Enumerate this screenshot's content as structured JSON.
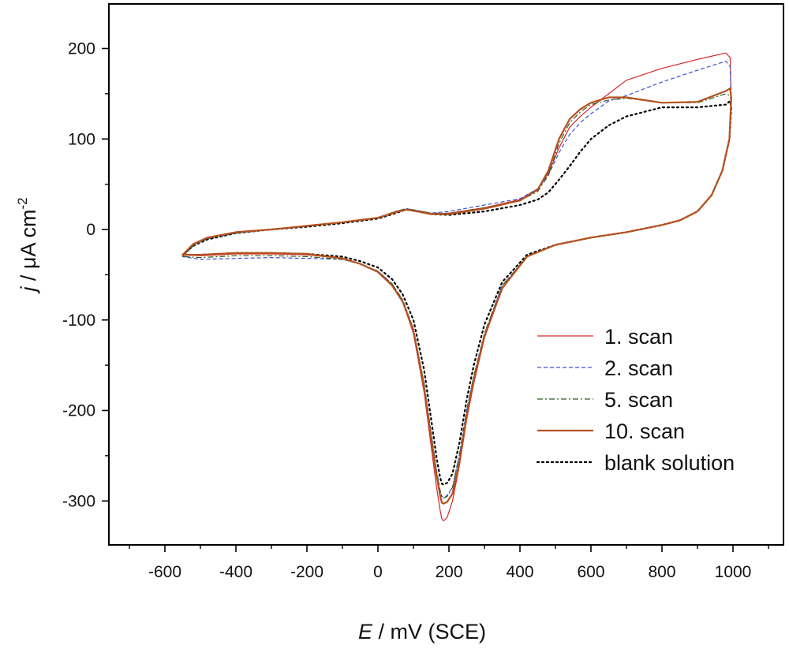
{
  "chart_data": {
    "type": "line",
    "xlabel": {
      "symbol": "E",
      "unit": " / mV (SCE)"
    },
    "ylabel": {
      "symbol": "j",
      "unit": " / μA cm",
      "sup": "-2"
    },
    "xlim": [
      -750,
      1100
    ],
    "ylim": [
      -350,
      250
    ],
    "xticks": [
      -600,
      -400,
      -200,
      0,
      200,
      400,
      600,
      800,
      1000
    ],
    "yticks": [
      -300,
      -200,
      -100,
      0,
      100,
      200
    ],
    "grid": false,
    "legend_position": "bottom-right",
    "series": [
      {
        "name": "1. scan",
        "color": "#d62728",
        "style": "solid",
        "width": 1.2,
        "x": [
          -550,
          -520,
          -480,
          -400,
          -300,
          -200,
          -100,
          0,
          50,
          80,
          110,
          150,
          200,
          300,
          400,
          450,
          480,
          510,
          540,
          570,
          600,
          650,
          700,
          800,
          900,
          980,
          992,
          995,
          990,
          970,
          940,
          900,
          850,
          800,
          700,
          600,
          500,
          420,
          350,
          300,
          270,
          250,
          230,
          210,
          195,
          185,
          180,
          175,
          165,
          150,
          130,
          100,
          70,
          40,
          0,
          -50,
          -100,
          -200,
          -300,
          -400,
          -500,
          -550
        ],
        "y": [
          -28,
          -16,
          -9,
          -3,
          0,
          4,
          8,
          13,
          20,
          22,
          20,
          17,
          18,
          24,
          33,
          45,
          62,
          90,
          113,
          125,
          135,
          150,
          165,
          178,
          188,
          195,
          190,
          140,
          100,
          65,
          38,
          20,
          10,
          5,
          -3,
          -9,
          -17,
          -30,
          -65,
          -120,
          -170,
          -210,
          -260,
          -300,
          -318,
          -322,
          -320,
          -310,
          -285,
          -240,
          -180,
          -115,
          -80,
          -62,
          -47,
          -38,
          -32,
          -28,
          -27,
          -27,
          -29,
          -28
        ]
      },
      {
        "name": "2. scan",
        "color": "#3a4fd6",
        "style": "dashed",
        "width": 1.2,
        "x": [
          -550,
          -520,
          -480,
          -400,
          -300,
          -200,
          -100,
          0,
          50,
          80,
          110,
          150,
          200,
          300,
          400,
          450,
          480,
          510,
          540,
          570,
          600,
          650,
          700,
          800,
          900,
          980,
          992,
          995,
          990,
          970,
          940,
          900,
          850,
          800,
          700,
          600,
          500,
          420,
          350,
          300,
          270,
          250,
          230,
          210,
          195,
          185,
          180,
          175,
          165,
          150,
          130,
          100,
          70,
          40,
          0,
          -50,
          -100,
          -200,
          -300,
          -400,
          -500,
          -550
        ],
        "y": [
          -30,
          -18,
          -10,
          -4,
          0,
          4,
          8,
          13,
          20,
          23,
          21,
          18,
          20,
          27,
          34,
          45,
          60,
          85,
          105,
          118,
          128,
          142,
          148,
          163,
          176,
          186,
          180,
          140,
          100,
          65,
          38,
          20,
          10,
          5,
          -3,
          -9,
          -17,
          -30,
          -62,
          -115,
          -162,
          -200,
          -248,
          -285,
          -294,
          -296,
          -295,
          -288,
          -266,
          -225,
          -170,
          -110,
          -78,
          -60,
          -46,
          -38,
          -33,
          -32,
          -31,
          -32,
          -33,
          -30
        ]
      },
      {
        "name": "5. scan",
        "color": "#2e5a1c",
        "style": "dashdot",
        "width": 1.2,
        "x": [
          -550,
          -520,
          -480,
          -400,
          -300,
          -200,
          -100,
          0,
          50,
          80,
          110,
          150,
          200,
          300,
          400,
          450,
          480,
          510,
          540,
          570,
          600,
          650,
          700,
          800,
          900,
          980,
          992,
          995,
          990,
          970,
          940,
          900,
          850,
          800,
          700,
          600,
          500,
          420,
          350,
          300,
          270,
          250,
          230,
          210,
          195,
          185,
          180,
          175,
          165,
          150,
          130,
          100,
          70,
          40,
          0,
          -50,
          -100,
          -200,
          -300,
          -400,
          -500,
          -550
        ],
        "y": [
          -30,
          -18,
          -10,
          -4,
          0,
          4,
          8,
          13,
          20,
          23,
          21,
          18,
          18,
          24,
          32,
          42,
          60,
          95,
          118,
          130,
          138,
          143,
          145,
          140,
          140,
          150,
          148,
          140,
          100,
          65,
          38,
          20,
          10,
          5,
          -3,
          -9,
          -17,
          -30,
          -62,
          -115,
          -162,
          -200,
          -248,
          -285,
          -295,
          -297,
          -296,
          -289,
          -267,
          -226,
          -170,
          -110,
          -78,
          -60,
          -46,
          -38,
          -33,
          -30,
          -29,
          -29,
          -31,
          -30
        ]
      },
      {
        "name": "10. scan",
        "color": "#b5511d",
        "style": "solid",
        "width": 2.2,
        "x": [
          -550,
          -520,
          -480,
          -400,
          -300,
          -200,
          -100,
          0,
          50,
          80,
          110,
          150,
          200,
          300,
          400,
          450,
          480,
          510,
          540,
          570,
          600,
          650,
          700,
          800,
          900,
          980,
          992,
          995,
          990,
          970,
          940,
          900,
          850,
          800,
          700,
          600,
          500,
          420,
          350,
          300,
          270,
          250,
          230,
          210,
          195,
          185,
          180,
          175,
          165,
          150,
          130,
          100,
          70,
          40,
          0,
          -50,
          -100,
          -200,
          -300,
          -400,
          -500,
          -550
        ],
        "y": [
          -28,
          -16,
          -9,
          -3,
          0,
          4,
          8,
          13,
          19,
          22,
          20,
          17,
          17,
          23,
          32,
          44,
          65,
          100,
          122,
          133,
          140,
          146,
          146,
          140,
          141,
          153,
          156,
          145,
          100,
          65,
          38,
          20,
          10,
          5,
          -3,
          -9,
          -17,
          -30,
          -65,
          -118,
          -166,
          -206,
          -256,
          -292,
          -301,
          -303,
          -302,
          -294,
          -272,
          -232,
          -175,
          -112,
          -80,
          -62,
          -47,
          -38,
          -32,
          -27,
          -26,
          -26,
          -28,
          -28
        ]
      },
      {
        "name": "blank solution",
        "color": "#000000",
        "style": "dotted",
        "width": 2.2,
        "x": [
          -550,
          -520,
          -480,
          -400,
          -300,
          -200,
          -100,
          0,
          50,
          80,
          110,
          150,
          200,
          300,
          400,
          450,
          480,
          510,
          540,
          570,
          600,
          650,
          700,
          800,
          900,
          980,
          992,
          995,
          990,
          970,
          940,
          900,
          850,
          800,
          700,
          600,
          500,
          420,
          350,
          300,
          270,
          250,
          230,
          210,
          195,
          185,
          180,
          175,
          165,
          150,
          130,
          100,
          70,
          40,
          0,
          -50,
          -100,
          -200,
          -300,
          -400,
          -500,
          -550
        ],
        "y": [
          -28,
          -18,
          -11,
          -4,
          0,
          3,
          7,
          12,
          18,
          22,
          20,
          17,
          16,
          20,
          27,
          33,
          41,
          55,
          70,
          86,
          100,
          115,
          125,
          135,
          135,
          138,
          142,
          135,
          100,
          65,
          38,
          20,
          10,
          5,
          -3,
          -9,
          -17,
          -28,
          -58,
          -105,
          -150,
          -188,
          -235,
          -270,
          -280,
          -282,
          -281,
          -274,
          -252,
          -210,
          -155,
          -100,
          -72,
          -55,
          -42,
          -35,
          -30,
          -27,
          -26,
          -26,
          -28,
          -28
        ]
      }
    ]
  }
}
